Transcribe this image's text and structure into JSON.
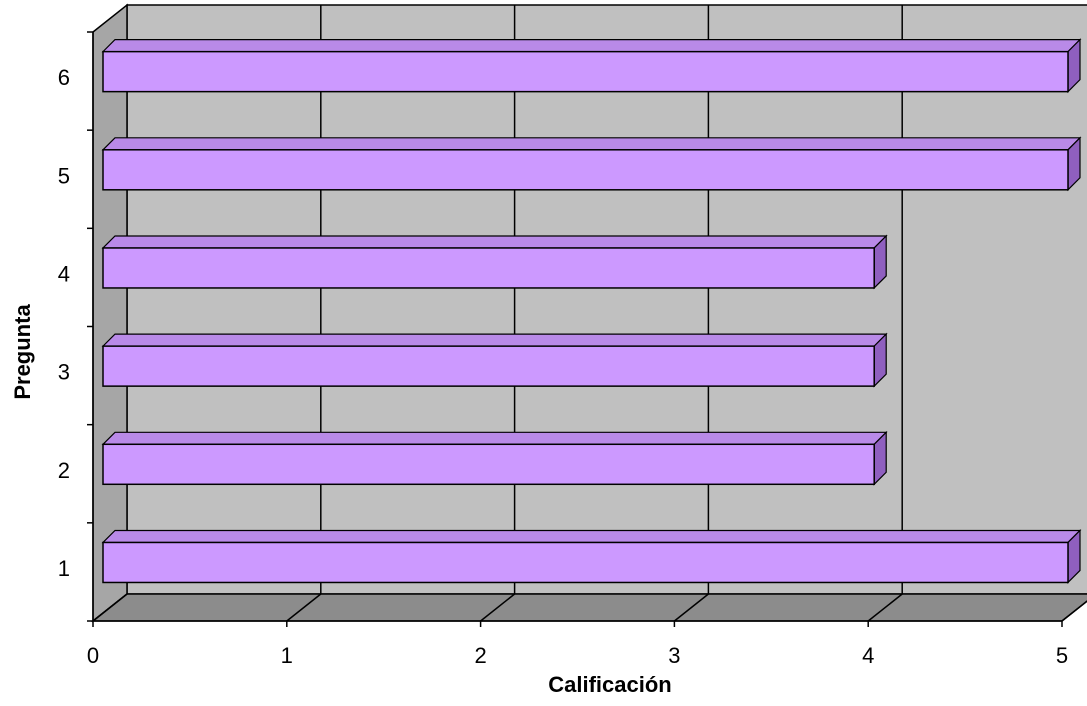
{
  "chart_data": {
    "type": "bar",
    "orientation": "horizontal",
    "style": "3d",
    "categories": [
      "1",
      "2",
      "3",
      "4",
      "5",
      "6"
    ],
    "values": [
      5,
      4,
      4,
      4,
      5,
      5
    ],
    "xlabel": "Calificación",
    "ylabel": "Pregunta",
    "xlim": [
      0,
      5
    ],
    "xticks": [
      "0",
      "1",
      "2",
      "3",
      "4",
      "5"
    ],
    "grid": "vertical",
    "legend": "none",
    "colors": {
      "bar_front": "#cc99ff",
      "bar_top": "#b98ae8",
      "bar_side": "#8f5fbf",
      "back_wall": "#c0c0c0",
      "side_wall": "#a6a6a6",
      "floor": "#8c8c8c",
      "lines": "#000000"
    }
  }
}
